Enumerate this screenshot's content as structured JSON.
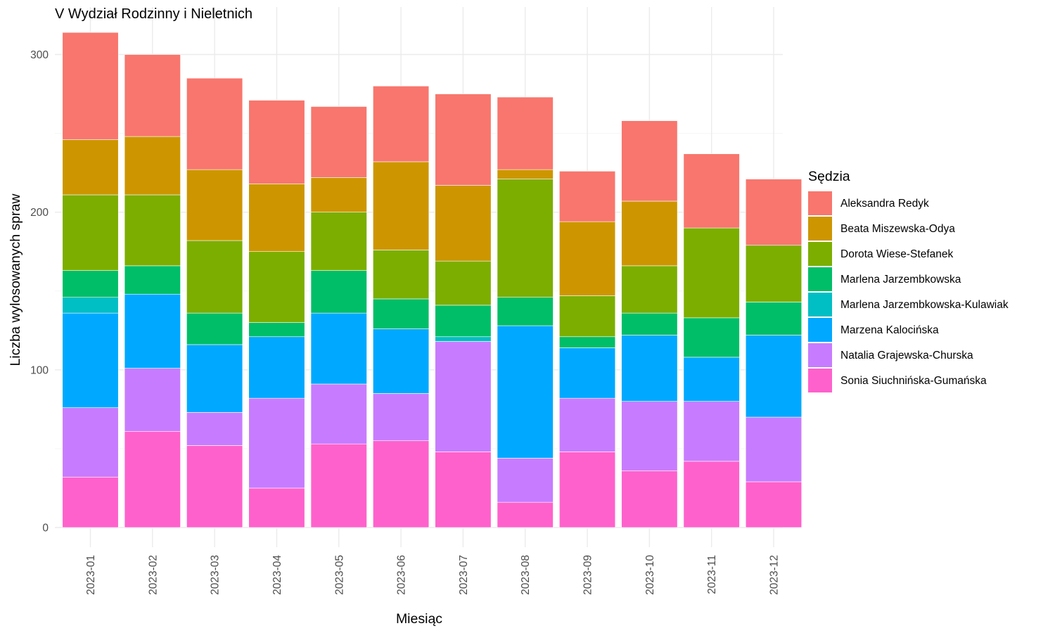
{
  "chart_data": {
    "type": "bar",
    "stacked": true,
    "title": "V Wydział Rodzinny i Nieletnich",
    "xlabel": "Miesiąc",
    "ylabel": "Liczba wylosowanych spraw",
    "ylim": [
      0,
      320
    ],
    "yticks": [
      0,
      100,
      200,
      300
    ],
    "grid": true,
    "legend_title": "Sędzia",
    "legend_position": "right",
    "categories": [
      "2023-01",
      "2023-02",
      "2023-03",
      "2023-04",
      "2023-05",
      "2023-06",
      "2023-07",
      "2023-08",
      "2023-09",
      "2023-10",
      "2023-11",
      "2023-12"
    ],
    "series": [
      {
        "name": "Sonia Siuchnińska-Gumańska",
        "color": "#FF61CC",
        "values": [
          32,
          61,
          52,
          25,
          53,
          55,
          48,
          16,
          48,
          36,
          42,
          29
        ]
      },
      {
        "name": "Natalia Grajewska-Churska",
        "color": "#C77CFF",
        "values": [
          44,
          40,
          21,
          57,
          38,
          30,
          70,
          28,
          34,
          44,
          38,
          41
        ]
      },
      {
        "name": "Marzena Kalocińska",
        "color": "#00A9FF",
        "values": [
          60,
          47,
          43,
          39,
          45,
          41,
          0,
          84,
          32,
          42,
          28,
          52
        ]
      },
      {
        "name": "Marlena Jarzembkowska-Kulawiak",
        "color": "#00BFC4",
        "values": [
          10,
          0,
          0,
          0,
          0,
          0,
          3,
          0,
          0,
          0,
          0,
          0
        ]
      },
      {
        "name": "Marlena Jarzembkowska",
        "color": "#00BE67",
        "values": [
          17,
          18,
          20,
          9,
          27,
          19,
          20,
          18,
          7,
          14,
          25,
          21
        ]
      },
      {
        "name": "Dorota Wiese-Stefanek",
        "color": "#7CAE00",
        "values": [
          48,
          45,
          46,
          45,
          37,
          31,
          28,
          75,
          26,
          30,
          57,
          36
        ]
      },
      {
        "name": "Beata Miszewska-Odya",
        "color": "#CD9600",
        "values": [
          35,
          37,
          45,
          43,
          22,
          56,
          48,
          6,
          47,
          41,
          0,
          0
        ]
      },
      {
        "name": "Aleksandra Redyk",
        "color": "#F8766D",
        "values": [
          68,
          52,
          58,
          53,
          45,
          48,
          58,
          46,
          32,
          51,
          47,
          42
        ]
      }
    ],
    "legend_order": [
      "Aleksandra Redyk",
      "Beata Miszewska-Odya",
      "Dorota Wiese-Stefanek",
      "Marlena Jarzembkowska",
      "Marlena Jarzembkowska-Kulawiak",
      "Marzena Kalocińska",
      "Natalia Grajewska-Churska",
      "Sonia Siuchnińska-Gumańska"
    ]
  }
}
